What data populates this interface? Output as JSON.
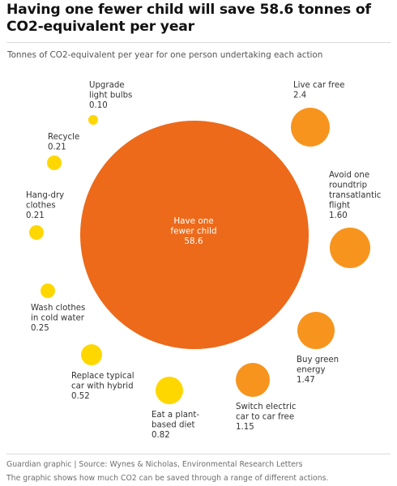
{
  "title": "Having one fewer child will save 58.6 tonnes of CO2-equivalent per year",
  "subtitle": "Tonnes of CO2-equivalent per year for one person undertaking each action",
  "footer": {
    "source": "Guardian graphic | Source: Wynes & Nicholas, Environmental Research Letters",
    "note": "The graphic shows how much CO2 can be saved through a range of different actions."
  },
  "colors": {
    "large": "#ec6a1a",
    "medium": "#f7941d",
    "small": "#ffd700"
  },
  "chart_data": {
    "type": "bubble",
    "title": "Having one fewer child will save 58.6 tonnes of CO2-equivalent per year",
    "subtitle": "Tonnes of CO2-equivalent per year for one person undertaking each action",
    "unit": "Tonnes of CO2-equivalent per year",
    "items": [
      {
        "label_lines": [
          "Have one",
          "fewer child"
        ],
        "value_label": "58.6",
        "value": 58.6,
        "tier": "large"
      },
      {
        "label_lines": [
          "Live car free"
        ],
        "value_label": "2.4",
        "value": 2.4,
        "tier": "medium"
      },
      {
        "label_lines": [
          "Avoid one",
          "roundtrip",
          "transatlantic",
          "flight"
        ],
        "value_label": "1.60",
        "value": 1.6,
        "tier": "medium"
      },
      {
        "label_lines": [
          "Buy green",
          "energy"
        ],
        "value_label": "1.47",
        "value": 1.47,
        "tier": "medium"
      },
      {
        "label_lines": [
          "Switch electric",
          "car to car free"
        ],
        "value_label": "1.15",
        "value": 1.15,
        "tier": "medium"
      },
      {
        "label_lines": [
          "Eat a plant-",
          "based diet"
        ],
        "value_label": "0.82",
        "value": 0.82,
        "tier": "small"
      },
      {
        "label_lines": [
          "Replace typical",
          "car with hybrid"
        ],
        "value_label": "0.52",
        "value": 0.52,
        "tier": "small"
      },
      {
        "label_lines": [
          "Wash clothes",
          "in cold water"
        ],
        "value_label": "0.25",
        "value": 0.25,
        "tier": "small"
      },
      {
        "label_lines": [
          "Hang-dry",
          "clothes"
        ],
        "value_label": "0.21",
        "value": 0.21,
        "tier": "small"
      },
      {
        "label_lines": [
          "Recycle"
        ],
        "value_label": "0.21",
        "value": 0.21,
        "tier": "small"
      },
      {
        "label_lines": [
          "Upgrade",
          "light bulbs"
        ],
        "value_label": "0.10",
        "value": 0.1,
        "tier": "small"
      }
    ]
  }
}
